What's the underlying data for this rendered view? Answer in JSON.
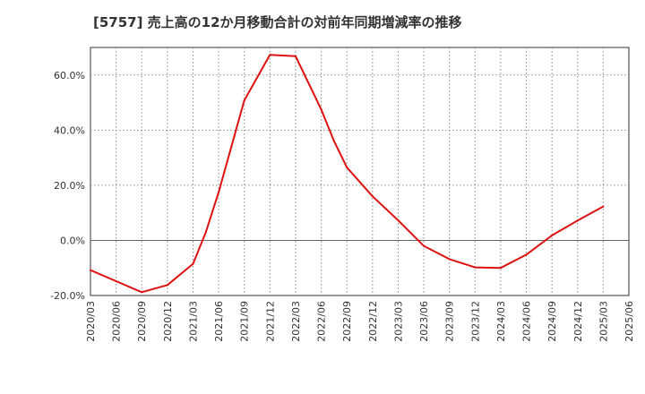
{
  "chart_data": {
    "type": "line",
    "title": "[5757]  売上高の12か月移動合計の対前年同期増減率の推移",
    "xlabel": "",
    "ylabel": "",
    "ylim": [
      -20,
      70
    ],
    "yticks": [
      -20,
      0,
      20,
      40,
      60
    ],
    "ytick_labels": [
      "-20.0%",
      "0.0%",
      "20.0%",
      "40.0%",
      "60.0%"
    ],
    "xtick_labels": [
      "2020/03",
      "2020/06",
      "2020/09",
      "2020/12",
      "2021/03",
      "2021/06",
      "2021/09",
      "2021/12",
      "2022/03",
      "2022/06",
      "2022/09",
      "2022/12",
      "2023/03",
      "2023/06",
      "2023/09",
      "2023/12",
      "2024/03",
      "2024/06",
      "2024/09",
      "2024/12",
      "2025/03",
      "2025/06"
    ],
    "grid": true,
    "series": [
      {
        "name": "対前年同期増減率",
        "color": "#dd1111",
        "points": [
          {
            "x": 0,
            "y": -10.8
          },
          {
            "x": 1,
            "y": -14.8
          },
          {
            "x": 2,
            "y": -18.8
          },
          {
            "x": 3,
            "y": -16.2
          },
          {
            "x": 4,
            "y": -8.5
          },
          {
            "x": 4.5,
            "y": 3.0
          },
          {
            "x": 5,
            "y": 17.5
          },
          {
            "x": 6,
            "y": 50.8
          },
          {
            "x": 7,
            "y": 67.3
          },
          {
            "x": 8,
            "y": 66.8
          },
          {
            "x": 9,
            "y": 47.5
          },
          {
            "x": 9.5,
            "y": 36.0
          },
          {
            "x": 10,
            "y": 26.5
          },
          {
            "x": 11,
            "y": 16.0
          },
          {
            "x": 12,
            "y": 7.3
          },
          {
            "x": 13,
            "y": -2.0
          },
          {
            "x": 14,
            "y": -6.8
          },
          {
            "x": 15,
            "y": -9.8
          },
          {
            "x": 16,
            "y": -10.0
          },
          {
            "x": 17,
            "y": -5.2
          },
          {
            "x": 18,
            "y": 1.8
          },
          {
            "x": 19,
            "y": 7.2
          },
          {
            "x": 20,
            "y": 12.3
          }
        ]
      }
    ]
  }
}
